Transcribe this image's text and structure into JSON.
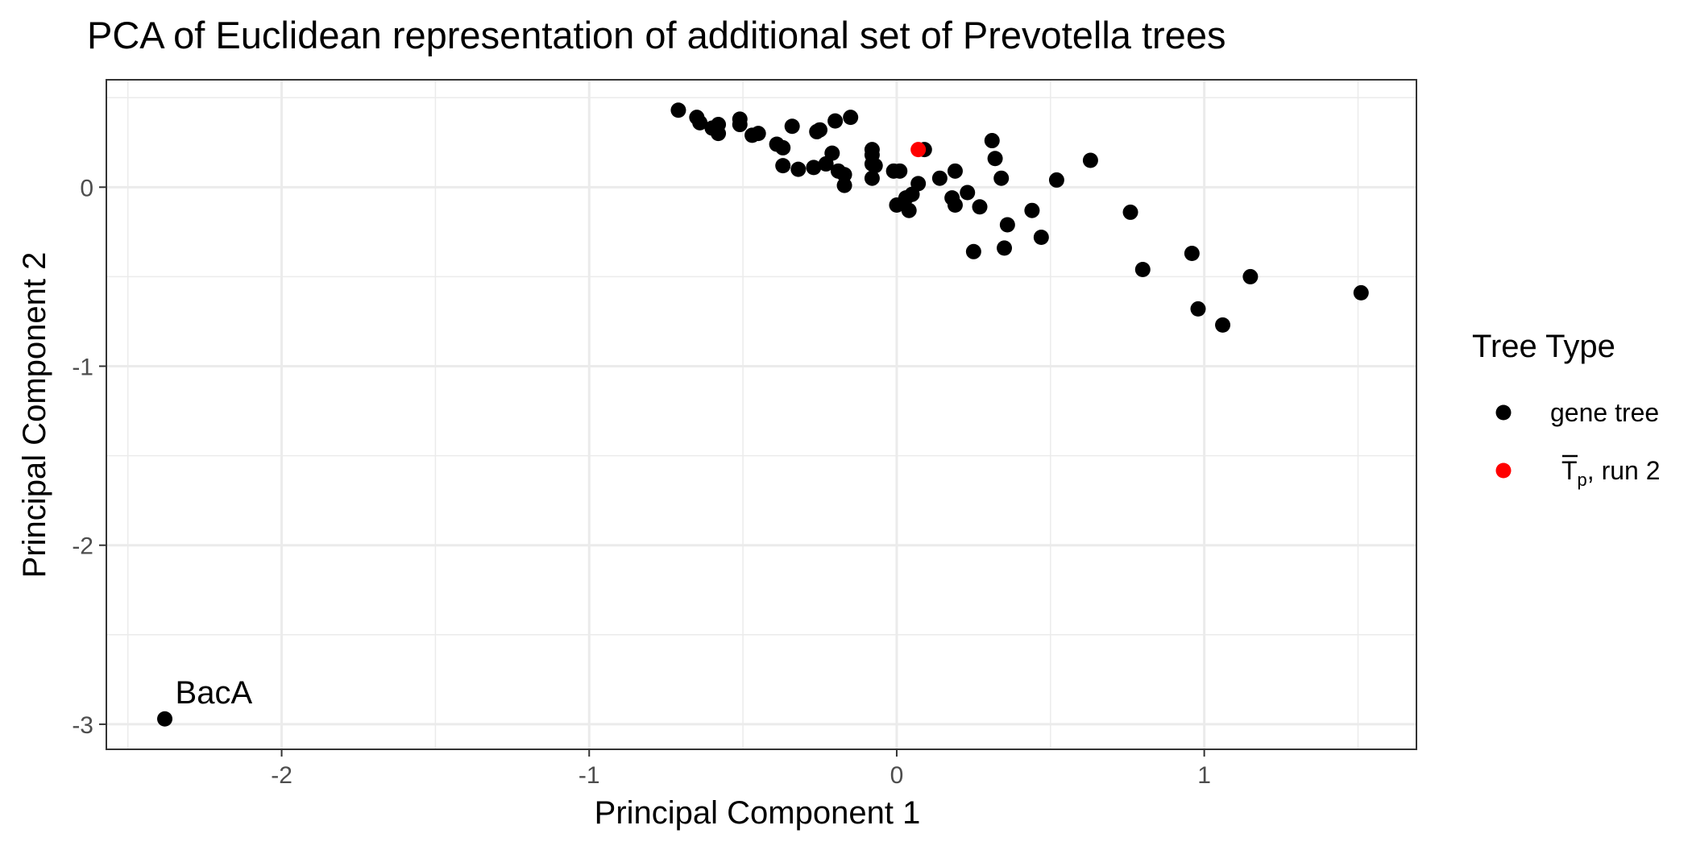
{
  "chart_data": {
    "type": "scatter",
    "title": "PCA of Euclidean representation of additional set of Prevotella trees",
    "xlabel": "Principal Component 1",
    "ylabel": "Principal Component 2",
    "xlim": [
      -2.57,
      1.69
    ],
    "ylim": [
      -3.14,
      0.6
    ],
    "xticks": [
      -2,
      -1,
      0,
      1
    ],
    "yticks": [
      0,
      -1,
      -2,
      -3
    ],
    "xtick_labels": [
      "-2",
      "-1",
      "0",
      "1"
    ],
    "ytick_labels": [
      "0",
      "-1",
      "-2",
      "-3"
    ],
    "grid": true,
    "legend_title": "Tree Type",
    "legend_position": "right",
    "series": [
      {
        "name": "gene tree",
        "color": "#000000",
        "points": [
          {
            "x": -0.71,
            "y": 0.43
          },
          {
            "x": -0.65,
            "y": 0.39
          },
          {
            "x": -0.64,
            "y": 0.36
          },
          {
            "x": -0.6,
            "y": 0.33
          },
          {
            "x": -0.58,
            "y": 0.35
          },
          {
            "x": -0.58,
            "y": 0.3
          },
          {
            "x": -0.51,
            "y": 0.38
          },
          {
            "x": -0.51,
            "y": 0.35
          },
          {
            "x": -0.47,
            "y": 0.29
          },
          {
            "x": -0.45,
            "y": 0.3
          },
          {
            "x": -0.39,
            "y": 0.24
          },
          {
            "x": -0.37,
            "y": 0.22
          },
          {
            "x": -0.37,
            "y": 0.12
          },
          {
            "x": -0.34,
            "y": 0.34
          },
          {
            "x": -0.32,
            "y": 0.1
          },
          {
            "x": -0.27,
            "y": 0.11
          },
          {
            "x": -0.26,
            "y": 0.31
          },
          {
            "x": -0.25,
            "y": 0.32
          },
          {
            "x": -0.23,
            "y": 0.13
          },
          {
            "x": -0.21,
            "y": 0.19
          },
          {
            "x": -0.2,
            "y": 0.37
          },
          {
            "x": -0.19,
            "y": 0.09
          },
          {
            "x": -0.17,
            "y": 0.07
          },
          {
            "x": -0.17,
            "y": 0.01
          },
          {
            "x": -0.15,
            "y": 0.39
          },
          {
            "x": -0.08,
            "y": 0.21
          },
          {
            "x": -0.08,
            "y": 0.18
          },
          {
            "x": -0.08,
            "y": 0.13
          },
          {
            "x": -0.07,
            "y": 0.12
          },
          {
            "x": -0.08,
            "y": 0.05
          },
          {
            "x": -0.01,
            "y": 0.09
          },
          {
            "x": 0.01,
            "y": 0.09
          },
          {
            "x": 0.0,
            "y": -0.1
          },
          {
            "x": 0.03,
            "y": -0.06
          },
          {
            "x": 0.05,
            "y": -0.04
          },
          {
            "x": 0.04,
            "y": -0.13
          },
          {
            "x": 0.07,
            "y": 0.02
          },
          {
            "x": 0.09,
            "y": 0.21
          },
          {
            "x": 0.14,
            "y": 0.05
          },
          {
            "x": 0.19,
            "y": 0.09
          },
          {
            "x": 0.18,
            "y": -0.06
          },
          {
            "x": 0.19,
            "y": -0.1
          },
          {
            "x": 0.23,
            "y": -0.03
          },
          {
            "x": 0.25,
            "y": -0.36
          },
          {
            "x": 0.27,
            "y": -0.11
          },
          {
            "x": 0.31,
            "y": 0.26
          },
          {
            "x": 0.32,
            "y": 0.16
          },
          {
            "x": 0.34,
            "y": 0.05
          },
          {
            "x": 0.36,
            "y": -0.21
          },
          {
            "x": 0.35,
            "y": -0.34
          },
          {
            "x": 0.44,
            "y": -0.13
          },
          {
            "x": 0.47,
            "y": -0.28
          },
          {
            "x": 0.52,
            "y": 0.04
          },
          {
            "x": 0.63,
            "y": 0.15
          },
          {
            "x": 0.76,
            "y": -0.14
          },
          {
            "x": 0.8,
            "y": -0.46
          },
          {
            "x": 0.96,
            "y": -0.37
          },
          {
            "x": 0.98,
            "y": -0.68
          },
          {
            "x": 1.06,
            "y": -0.77
          },
          {
            "x": 1.15,
            "y": -0.5
          },
          {
            "x": 1.51,
            "y": -0.59
          },
          {
            "x": -2.38,
            "y": -2.97
          }
        ]
      },
      {
        "name_main": "T",
        "name_sub": "p",
        "name_rest": ", run 2",
        "color": "#ff0000",
        "points": [
          {
            "x": 0.07,
            "y": 0.21
          }
        ]
      }
    ],
    "annotations": [
      {
        "text": "BacA",
        "x": -2.38,
        "y": -2.97
      }
    ]
  }
}
